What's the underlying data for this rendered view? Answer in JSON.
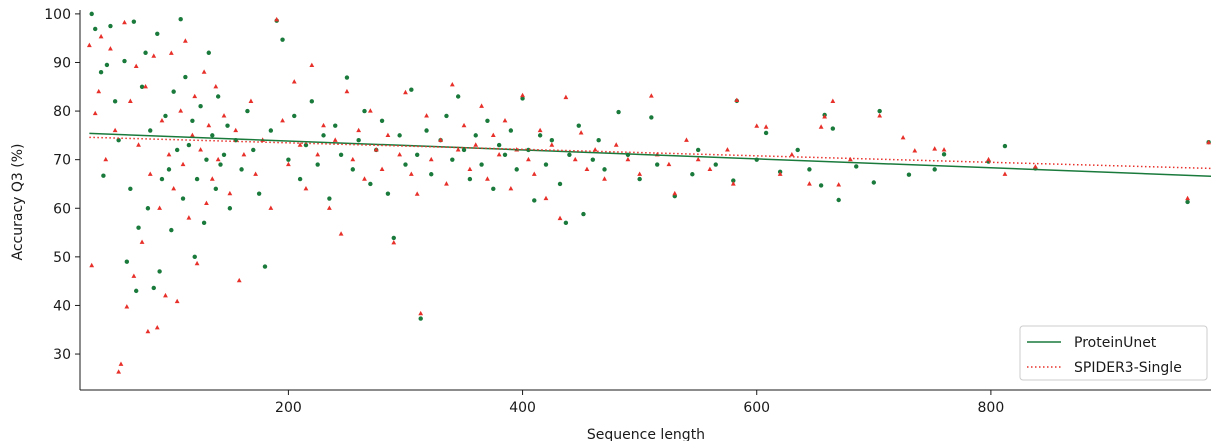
{
  "chart_data": {
    "type": "scatter",
    "xlabel": "Sequence length",
    "ylabel": "Accuracy Q3 (%)",
    "xlim": [
      22,
      988
    ],
    "ylim": [
      22.6,
      100.8
    ],
    "xticks": [
      200,
      400,
      600,
      800
    ],
    "yticks": [
      30,
      40,
      50,
      60,
      70,
      80,
      90,
      100
    ],
    "legend_position": "lower-right",
    "series": [
      {
        "name": "ProteinUnet",
        "color": "#1a7a3c",
        "marker": "circle",
        "trend": {
          "style": "solid",
          "x": [
            30,
            988
          ],
          "y": [
            75.4,
            66.6
          ]
        },
        "points": [
          [
            32,
            100
          ],
          [
            35,
            96.9
          ],
          [
            40,
            88
          ],
          [
            42,
            66.7
          ],
          [
            45,
            89.5
          ],
          [
            48,
            97.5
          ],
          [
            52,
            82
          ],
          [
            55,
            74
          ],
          [
            60,
            90.3
          ],
          [
            62,
            49
          ],
          [
            65,
            64
          ],
          [
            68,
            98.4
          ],
          [
            70,
            43
          ],
          [
            72,
            56
          ],
          [
            75,
            85
          ],
          [
            78,
            92
          ],
          [
            80,
            60
          ],
          [
            82,
            76
          ],
          [
            85,
            43.6
          ],
          [
            88,
            95.9
          ],
          [
            90,
            47
          ],
          [
            92,
            66
          ],
          [
            95,
            79
          ],
          [
            98,
            68
          ],
          [
            100,
            55.5
          ],
          [
            102,
            84
          ],
          [
            105,
            72
          ],
          [
            108,
            98.9
          ],
          [
            110,
            62
          ],
          [
            112,
            87
          ],
          [
            115,
            73
          ],
          [
            118,
            78
          ],
          [
            120,
            50
          ],
          [
            122,
            66
          ],
          [
            125,
            81
          ],
          [
            128,
            57
          ],
          [
            130,
            70
          ],
          [
            132,
            92
          ],
          [
            135,
            75
          ],
          [
            138,
            64
          ],
          [
            140,
            83
          ],
          [
            142,
            69
          ],
          [
            145,
            71
          ],
          [
            148,
            77
          ],
          [
            150,
            60
          ],
          [
            155,
            74
          ],
          [
            160,
            68
          ],
          [
            165,
            80
          ],
          [
            170,
            72
          ],
          [
            175,
            63
          ],
          [
            180,
            48
          ],
          [
            185,
            76
          ],
          [
            190,
            98.6
          ],
          [
            195,
            94.7
          ],
          [
            200,
            70
          ],
          [
            205,
            79
          ],
          [
            210,
            66
          ],
          [
            215,
            73
          ],
          [
            220,
            82
          ],
          [
            225,
            69
          ],
          [
            230,
            75
          ],
          [
            235,
            62
          ],
          [
            240,
            77
          ],
          [
            245,
            71
          ],
          [
            250,
            86.9
          ],
          [
            255,
            68
          ],
          [
            260,
            74
          ],
          [
            265,
            80
          ],
          [
            270,
            65
          ],
          [
            275,
            72
          ],
          [
            280,
            78
          ],
          [
            285,
            63
          ],
          [
            290,
            53.9
          ],
          [
            295,
            75
          ],
          [
            300,
            69
          ],
          [
            305,
            84.4
          ],
          [
            310,
            71
          ],
          [
            313,
            37.3
          ],
          [
            318,
            76
          ],
          [
            322,
            67
          ],
          [
            330,
            74
          ],
          [
            335,
            79
          ],
          [
            340,
            70
          ],
          [
            345,
            83
          ],
          [
            350,
            72
          ],
          [
            355,
            66
          ],
          [
            360,
            75
          ],
          [
            365,
            69
          ],
          [
            370,
            78
          ],
          [
            375,
            64
          ],
          [
            380,
            73
          ],
          [
            385,
            71
          ],
          [
            390,
            76
          ],
          [
            395,
            68
          ],
          [
            400,
            82.6
          ],
          [
            405,
            72
          ],
          [
            410,
            61.6
          ],
          [
            415,
            75
          ],
          [
            420,
            69
          ],
          [
            425,
            74
          ],
          [
            432,
            65
          ],
          [
            437,
            57
          ],
          [
            440,
            71
          ],
          [
            448,
            77
          ],
          [
            452,
            58.8
          ],
          [
            460,
            70
          ],
          [
            465,
            74
          ],
          [
            470,
            68
          ],
          [
            482,
            79.8
          ],
          [
            490,
            71
          ],
          [
            500,
            66
          ],
          [
            510,
            78.7
          ],
          [
            515,
            69
          ],
          [
            530,
            62.5
          ],
          [
            545,
            67
          ],
          [
            550,
            72
          ],
          [
            565,
            69
          ],
          [
            580,
            65.7
          ],
          [
            583,
            82.1
          ],
          [
            600,
            70
          ],
          [
            608,
            75.5
          ],
          [
            620,
            67.5
          ],
          [
            635,
            72
          ],
          [
            645,
            68
          ],
          [
            655,
            64.7
          ],
          [
            658,
            79.2
          ],
          [
            665,
            76.4
          ],
          [
            670,
            61.7
          ],
          [
            685,
            68.6
          ],
          [
            700,
            65.3
          ],
          [
            705,
            80
          ],
          [
            730,
            66.9
          ],
          [
            752,
            68
          ],
          [
            760,
            71.1
          ],
          [
            798,
            69.6
          ],
          [
            812,
            72.8
          ],
          [
            838,
            68.2
          ],
          [
            968,
            61.3
          ],
          [
            986,
            73.6
          ]
        ]
      },
      {
        "name": "SPIDER3-Single",
        "color": "#e8302a",
        "marker": "triangle",
        "trend": {
          "style": "dotted",
          "x": [
            30,
            988
          ],
          "y": [
            74.6,
            68.2
          ]
        },
        "points": [
          [
            30,
            93.5
          ],
          [
            32,
            48.2
          ],
          [
            35,
            79.5
          ],
          [
            38,
            84
          ],
          [
            40,
            95.3
          ],
          [
            44,
            70
          ],
          [
            48,
            92.8
          ],
          [
            52,
            76
          ],
          [
            55,
            26.3
          ],
          [
            57,
            27.9
          ],
          [
            60,
            98.2
          ],
          [
            62,
            39.7
          ],
          [
            65,
            82
          ],
          [
            68,
            46
          ],
          [
            70,
            89.2
          ],
          [
            72,
            73
          ],
          [
            75,
            53
          ],
          [
            78,
            85
          ],
          [
            80,
            34.6
          ],
          [
            82,
            67
          ],
          [
            85,
            91.3
          ],
          [
            88,
            35.4
          ],
          [
            90,
            60
          ],
          [
            92,
            78
          ],
          [
            95,
            42
          ],
          [
            98,
            71
          ],
          [
            100,
            91.9
          ],
          [
            102,
            64
          ],
          [
            105,
            40.8
          ],
          [
            108,
            80
          ],
          [
            110,
            69
          ],
          [
            112,
            94.4
          ],
          [
            115,
            58
          ],
          [
            118,
            75
          ],
          [
            120,
            83
          ],
          [
            122,
            48.6
          ],
          [
            125,
            72
          ],
          [
            128,
            88
          ],
          [
            130,
            61
          ],
          [
            132,
            77
          ],
          [
            135,
            66
          ],
          [
            138,
            85
          ],
          [
            140,
            70
          ],
          [
            145,
            79
          ],
          [
            150,
            63
          ],
          [
            155,
            76
          ],
          [
            158,
            45.1
          ],
          [
            162,
            71
          ],
          [
            168,
            82
          ],
          [
            172,
            67
          ],
          [
            178,
            74
          ],
          [
            185,
            60
          ],
          [
            190,
            98.8
          ],
          [
            195,
            78
          ],
          [
            200,
            69
          ],
          [
            205,
            86
          ],
          [
            210,
            73
          ],
          [
            215,
            64
          ],
          [
            220,
            89.4
          ],
          [
            225,
            71
          ],
          [
            230,
            77
          ],
          [
            235,
            60
          ],
          [
            240,
            74
          ],
          [
            245,
            54.7
          ],
          [
            250,
            84
          ],
          [
            255,
            70
          ],
          [
            260,
            76
          ],
          [
            265,
            66
          ],
          [
            270,
            80
          ],
          [
            275,
            72
          ],
          [
            280,
            68
          ],
          [
            285,
            75
          ],
          [
            290,
            52.9
          ],
          [
            295,
            71
          ],
          [
            300,
            83.8
          ],
          [
            305,
            67
          ],
          [
            310,
            62.9
          ],
          [
            313,
            38.3
          ],
          [
            318,
            79
          ],
          [
            322,
            70
          ],
          [
            330,
            74
          ],
          [
            335,
            65
          ],
          [
            340,
            85.4
          ],
          [
            345,
            72
          ],
          [
            350,
            77
          ],
          [
            355,
            68
          ],
          [
            360,
            73
          ],
          [
            365,
            81
          ],
          [
            370,
            66
          ],
          [
            375,
            75
          ],
          [
            380,
            71
          ],
          [
            385,
            78
          ],
          [
            390,
            64
          ],
          [
            395,
            72
          ],
          [
            400,
            83.2
          ],
          [
            405,
            70
          ],
          [
            410,
            67
          ],
          [
            415,
            76
          ],
          [
            420,
            62
          ],
          [
            425,
            73
          ],
          [
            432,
            57.9
          ],
          [
            437,
            82.8
          ],
          [
            445,
            70
          ],
          [
            450,
            75.5
          ],
          [
            455,
            68
          ],
          [
            462,
            72
          ],
          [
            470,
            66
          ],
          [
            480,
            73
          ],
          [
            490,
            70
          ],
          [
            500,
            67
          ],
          [
            510,
            83.1
          ],
          [
            515,
            71
          ],
          [
            525,
            69
          ],
          [
            530,
            63
          ],
          [
            540,
            74
          ],
          [
            550,
            70
          ],
          [
            560,
            68
          ],
          [
            575,
            72
          ],
          [
            580,
            65
          ],
          [
            583,
            82.2
          ],
          [
            600,
            76.9
          ],
          [
            608,
            76.7
          ],
          [
            620,
            67
          ],
          [
            630,
            71
          ],
          [
            645,
            65
          ],
          [
            655,
            76.7
          ],
          [
            658,
            78.8
          ],
          [
            665,
            82
          ],
          [
            670,
            64.8
          ],
          [
            680,
            70
          ],
          [
            705,
            79
          ],
          [
            725,
            74.5
          ],
          [
            735,
            71.8
          ],
          [
            752,
            72.2
          ],
          [
            760,
            72
          ],
          [
            798,
            70
          ],
          [
            812,
            67
          ],
          [
            838,
            68.5
          ],
          [
            968,
            62
          ],
          [
            986,
            73.5
          ]
        ]
      }
    ]
  }
}
